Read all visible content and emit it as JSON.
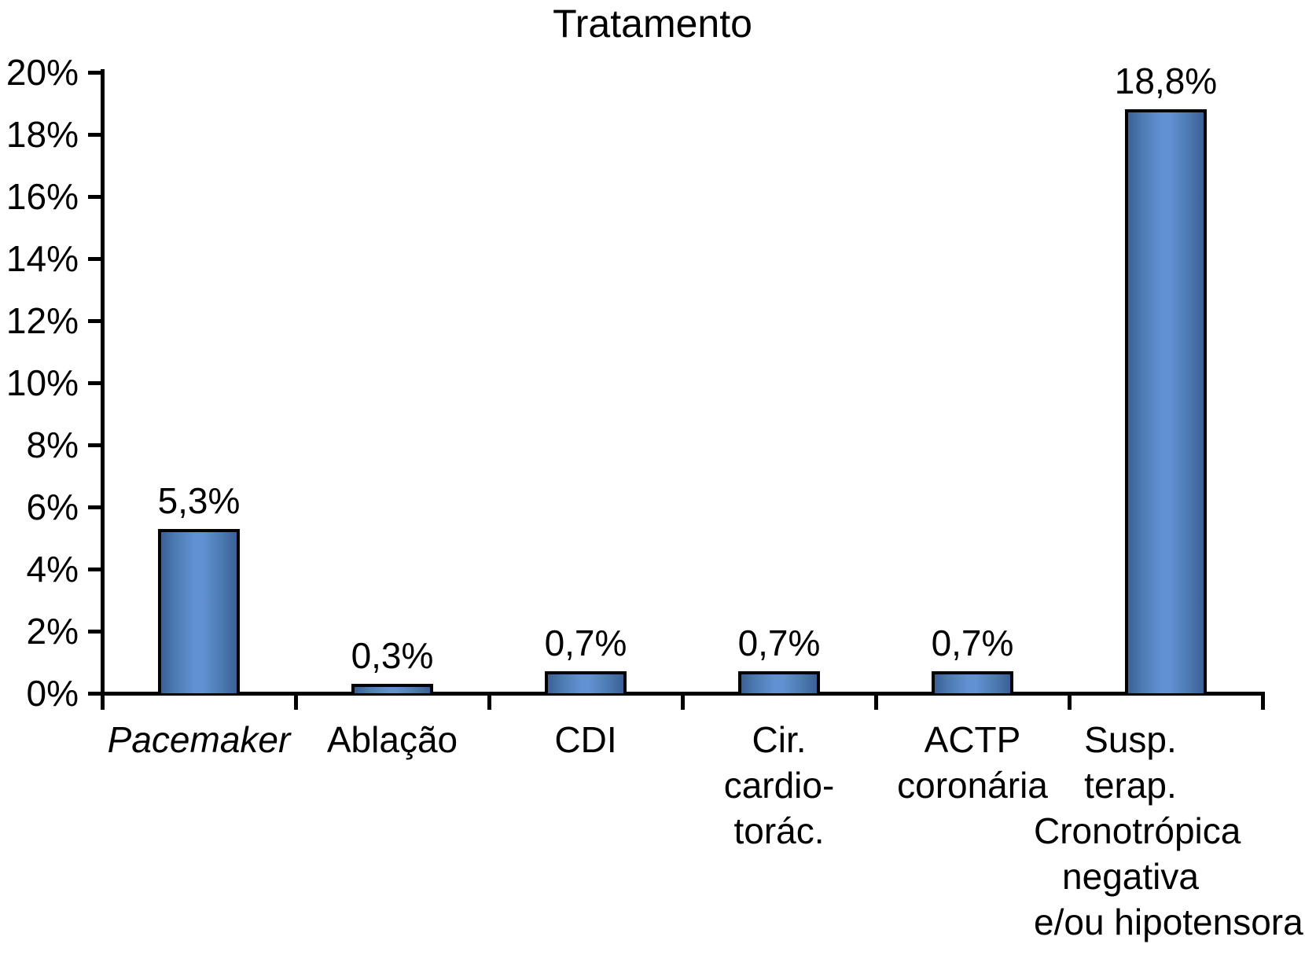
{
  "chart_data": {
    "type": "bar",
    "title": "Tratamento",
    "categories": [
      "Pacemaker",
      "Ablação",
      "CDI",
      "Cir.\ncardio-\ntorác.",
      "ACTP\ncoronária",
      "Susp.\nterap.\nCronotrópica\nnegativa\ne/ou hipotensora"
    ],
    "category_slugs": [
      "pacemaker",
      "ablacao",
      "cdi",
      "cir-cardiotorac",
      "actp-coronaria",
      "susp-terap-cronotropica"
    ],
    "italic_categories": [
      true,
      false,
      false,
      false,
      false,
      false
    ],
    "values": [
      5.3,
      0.3,
      0.7,
      0.7,
      0.7,
      18.8
    ],
    "value_labels": [
      "5,3%",
      "0,3%",
      "0,7%",
      "0,7%",
      "0,7%",
      "18,8%"
    ],
    "xlabel": "",
    "ylabel": "",
    "ylim": [
      0,
      20
    ],
    "ytick_step": 2,
    "ytick_labels": [
      "0%",
      "2%",
      "4%",
      "6%",
      "8%",
      "10%",
      "12%",
      "14%",
      "16%",
      "18%",
      "20%"
    ],
    "grid": false,
    "legend": "none",
    "decimal_separator": ",",
    "colors": {
      "bar_edge_shade": "#3a6096",
      "bar_mid_shade": "#4c7ab2",
      "bar_center_highlight": "#6191d2",
      "bar_border": "#000000",
      "axis": "#000000",
      "text": "#000000",
      "background": "#ffffff"
    },
    "layout_hints": {
      "category_label_x_offsets": [
        0,
        0,
        0,
        0,
        0,
        -45
      ]
    }
  }
}
